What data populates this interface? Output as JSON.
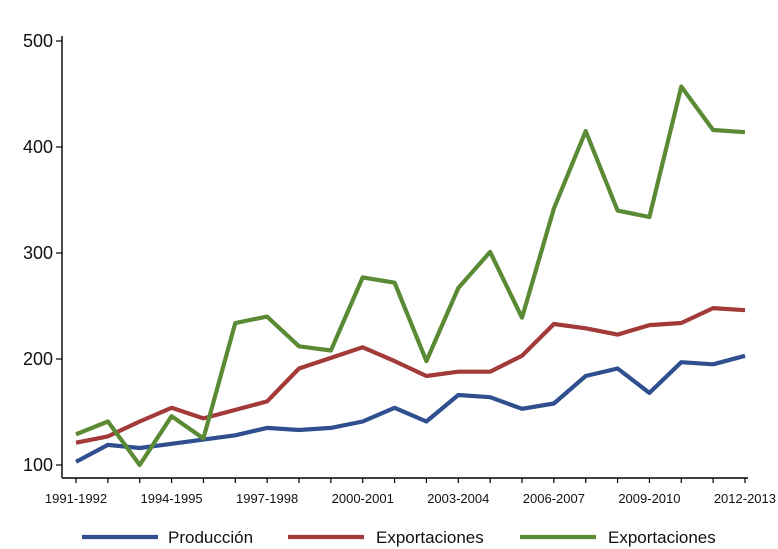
{
  "chart_data": {
    "type": "line",
    "title": "",
    "xlabel": "",
    "ylabel": "",
    "ylim": [
      100,
      500
    ],
    "yticks": [
      100,
      200,
      300,
      400,
      500
    ],
    "grid": false,
    "legend_position": "bottom",
    "categories": [
      "1991-1992",
      "1992-1993",
      "1993-1994",
      "1994-1995",
      "1995-1996",
      "1996-1997",
      "1997-1998",
      "1998-1999",
      "1999-2000",
      "2000-2001",
      "2001-2002",
      "2002-2003",
      "2003-2004",
      "2004-2005",
      "2005-2006",
      "2006-2007",
      "2007-2008",
      "2008-2009",
      "2009-2010",
      "2010-2011",
      "2011-2012",
      "2012-2013"
    ],
    "xtick_labels": [
      {
        "index": 0,
        "label": "1991-1992"
      },
      {
        "index": 3,
        "label": "1994-1995"
      },
      {
        "index": 6,
        "label": "1997-1998"
      },
      {
        "index": 9,
        "label": "2000-2001"
      },
      {
        "index": 12,
        "label": "2003-2004"
      },
      {
        "index": 15,
        "label": "2006-2007"
      },
      {
        "index": 18,
        "label": "2009-2010"
      },
      {
        "index": 21,
        "label": "2012-2013"
      }
    ],
    "series": [
      {
        "name": "Producción",
        "color": "#2f4f8f",
        "values": [
          103,
          119,
          116,
          120,
          124,
          128,
          135,
          133,
          135,
          141,
          154,
          141,
          166,
          164,
          153,
          158,
          184,
          191,
          168,
          197,
          195,
          203
        ]
      },
      {
        "name": "Exportaciones",
        "color": "#a23a3a",
        "values": [
          121,
          127,
          141,
          154,
          144,
          152,
          160,
          191,
          201,
          211,
          198,
          184,
          188,
          188,
          203,
          233,
          229,
          223,
          232,
          234,
          248,
          246
        ]
      },
      {
        "name": "Exportaciones",
        "color": "#5a8a34",
        "values": [
          129,
          141,
          100,
          146,
          125,
          234,
          240,
          212,
          208,
          277,
          272,
          198,
          267,
          301,
          239,
          342,
          415,
          340,
          334,
          457,
          416,
          414
        ]
      }
    ]
  }
}
